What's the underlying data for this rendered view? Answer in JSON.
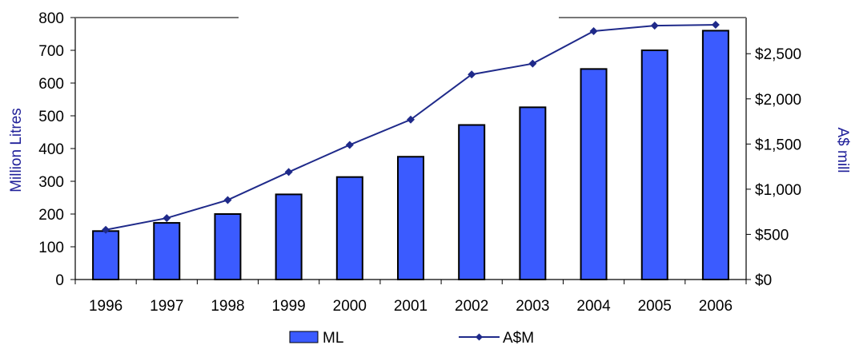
{
  "chart_data": {
    "type": "bar",
    "categories": [
      "1996",
      "1997",
      "1998",
      "1999",
      "2000",
      "2001",
      "2002",
      "2003",
      "2004",
      "2005",
      "2006"
    ],
    "series": [
      {
        "name": "ML",
        "type": "bar",
        "axis": "left",
        "values": [
          148,
          173,
          200,
          260,
          313,
          375,
          472,
          526,
          643,
          700,
          760
        ]
      },
      {
        "name": "A$M",
        "type": "line",
        "axis": "right",
        "values": [
          550,
          680,
          880,
          1190,
          1490,
          1770,
          2270,
          2390,
          2750,
          2810,
          2820
        ]
      }
    ],
    "ylabel": "Million Litres",
    "y2label": "A$ mill",
    "ylim": [
      0,
      800
    ],
    "y2lim": [
      0,
      2900
    ],
    "yticks": [
      "0",
      "100",
      "200",
      "300",
      "400",
      "500",
      "600",
      "700",
      "800"
    ],
    "y2ticks": [
      "$0",
      "$500",
      "$1,000",
      "$1,500",
      "$2,000",
      "$2,500"
    ],
    "y2tick_values": [
      0,
      500,
      1000,
      1500,
      2000,
      2500
    ],
    "grid": false,
    "legend_position": "bottom",
    "colors": {
      "bar_fill": "#3b5bff",
      "bar_stroke": "#000000",
      "line": "#1f2a8a",
      "axis": "#000000",
      "axis_title": "#1f1f99"
    }
  }
}
